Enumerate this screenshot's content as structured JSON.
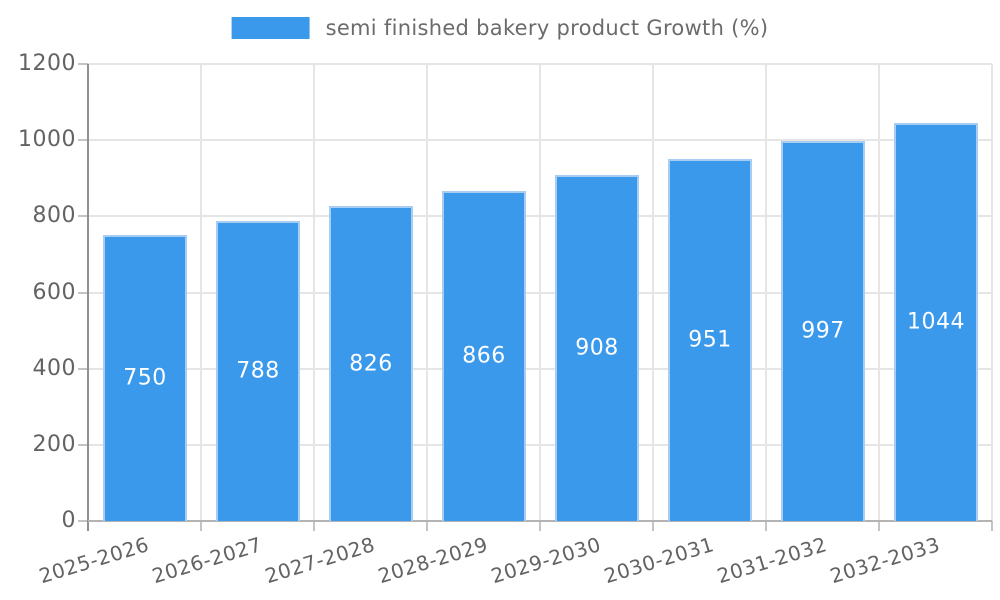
{
  "chart_data": {
    "type": "bar",
    "series_name": "semi finished bakery product Growth (%)",
    "categories": [
      "2025-2026",
      "2026-2027",
      "2027-2028",
      "2028-2029",
      "2029-2030",
      "2030-2031",
      "2031-2032",
      "2032-2033"
    ],
    "values": [
      750,
      788,
      826,
      866,
      908,
      951,
      997,
      1044
    ],
    "value_labels": [
      "750",
      "788",
      "826",
      "866",
      "908",
      "951",
      "997",
      "1044"
    ],
    "ytick_labels": [
      "0",
      "200",
      "400",
      "600",
      "800",
      "1000",
      "1200"
    ],
    "yticks": [
      0,
      200,
      400,
      600,
      800,
      1000,
      1200
    ],
    "ylim": [
      0,
      1200
    ],
    "grid": true,
    "legend_position": "top",
    "xlabel": "",
    "ylabel": "",
    "title": "",
    "colors": {
      "bar_fill": "#3b99ec",
      "bar_border": "#a7cef2",
      "grid": "#e5e5e5",
      "axis_y": "#909090",
      "axis_x": "#b3b3b3",
      "tick_mark": "#c4c4c4",
      "tick_label": "#636363",
      "legend_text": "#6b6b6b",
      "value_label": "#ffffff",
      "background": "#ffffff"
    }
  }
}
